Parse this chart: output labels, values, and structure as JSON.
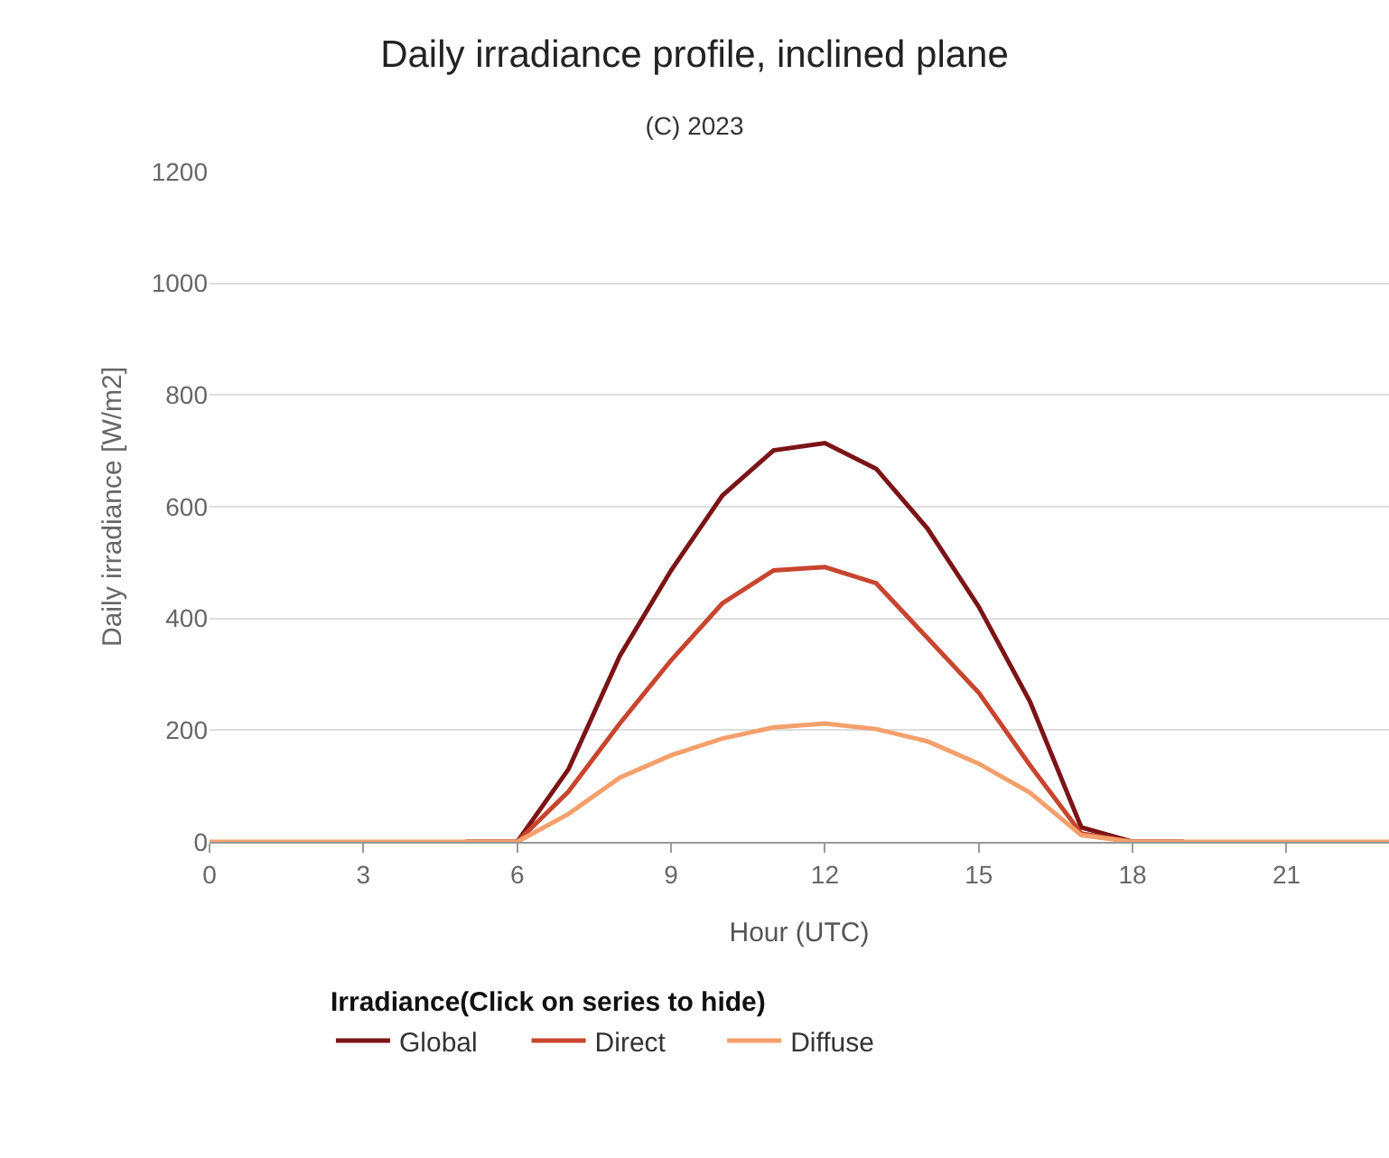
{
  "chart_data": {
    "type": "line",
    "title": "Daily irradiance profile, inclined plane",
    "subtitle": "(C) 2023",
    "xlabel": "Hour (UTC)",
    "ylabel": "Daily irradiance [W/m2]",
    "legend_title": "Irradiance(Click on series to hide)",
    "x": [
      0,
      1,
      2,
      3,
      4,
      5,
      6,
      7,
      8,
      9,
      10,
      11,
      12,
      13,
      14,
      15,
      16,
      17,
      18,
      19,
      20,
      21,
      22,
      23
    ],
    "series": [
      {
        "name": "Global",
        "color": "#7b1416",
        "values": [
          null,
          null,
          null,
          null,
          null,
          0,
          0,
          130,
          333,
          486,
          620,
          701,
          714,
          668,
          561,
          421,
          251,
          26,
          0,
          0,
          null,
          null,
          null,
          null
        ]
      },
      {
        "name": "Direct",
        "color": "#c8452f",
        "values": [
          null,
          null,
          null,
          null,
          null,
          0,
          0,
          90,
          212,
          325,
          427,
          486,
          492,
          463,
          365,
          267,
          137,
          15,
          0,
          0,
          null,
          null,
          null,
          null
        ]
      },
      {
        "name": "Diffuse",
        "color": "#f4a06c",
        "values": [
          0,
          0,
          0,
          0,
          0,
          0,
          0,
          50,
          115,
          155,
          185,
          205,
          212,
          202,
          180,
          140,
          88,
          12,
          0,
          0,
          0,
          0,
          0,
          0
        ]
      }
    ],
    "xlim": [
      0,
      23
    ],
    "xticks": [
      0,
      3,
      6,
      9,
      12,
      15,
      18,
      21
    ],
    "ylim": [
      0,
      1200
    ],
    "yticks": [
      0,
      200,
      400,
      600,
      800,
      1000,
      1200
    ],
    "grid": "y",
    "legend": "bottom",
    "marker": "none",
    "line_style": "solid"
  }
}
